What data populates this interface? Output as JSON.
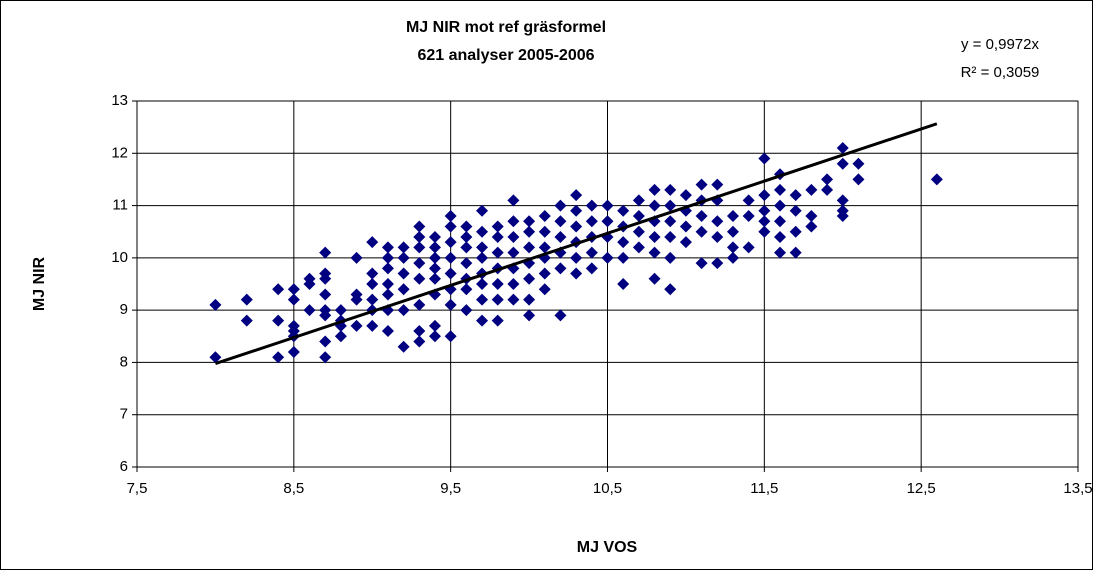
{
  "chart_data": {
    "type": "scatter",
    "title": "MJ NIR mot ref gräsformel",
    "subtitle": "621 analyser 2005-2006",
    "x_label": "MJ VOS",
    "y_label": "MJ NIR",
    "equation": "y = 0,9972x",
    "r_squared": "R² = 0,3059",
    "trendline": {
      "slope": 0.9972,
      "color": "#000000"
    },
    "color": "#000080",
    "grid": true,
    "xlim": [
      7.5,
      13.5
    ],
    "xticks": [
      {
        "value": 7.5,
        "label": "7,5"
      },
      {
        "value": 8.5,
        "label": "8,5"
      },
      {
        "value": 9.5,
        "label": "9,5"
      },
      {
        "value": 10.5,
        "label": "10,5"
      },
      {
        "value": 11.5,
        "label": "11,5"
      },
      {
        "value": 12.5,
        "label": "12,5"
      },
      {
        "value": 13.5,
        "label": "13,5"
      }
    ],
    "ylim": [
      6,
      13
    ],
    "yticks": [
      6,
      7,
      8,
      9,
      10,
      11,
      12,
      13
    ],
    "x": [
      8.0,
      8.0,
      8.2,
      8.2,
      8.4,
      8.4,
      8.4,
      8.5,
      8.5,
      8.5,
      8.5,
      8.5,
      8.5,
      8.6,
      8.6,
      8.6,
      8.7,
      8.7,
      8.7,
      8.7,
      8.7,
      8.7,
      8.7,
      8.7,
      8.8,
      8.8,
      8.8,
      8.8,
      8.9,
      8.9,
      8.9,
      8.9,
      9.0,
      9.0,
      9.0,
      9.0,
      9.0,
      9.0,
      9.1,
      9.1,
      9.1,
      9.1,
      9.1,
      9.1,
      9.1,
      9.2,
      9.2,
      9.2,
      9.2,
      9.2,
      9.2,
      9.3,
      9.3,
      9.3,
      9.3,
      9.3,
      9.3,
      9.3,
      9.3,
      9.4,
      9.4,
      9.4,
      9.4,
      9.4,
      9.4,
      9.4,
      9.4,
      9.5,
      9.5,
      9.5,
      9.5,
      9.5,
      9.5,
      9.5,
      9.5,
      9.6,
      9.6,
      9.6,
      9.6,
      9.6,
      9.6,
      9.6,
      9.7,
      9.7,
      9.7,
      9.7,
      9.7,
      9.7,
      9.7,
      9.7,
      9.8,
      9.8,
      9.8,
      9.8,
      9.8,
      9.8,
      9.8,
      9.9,
      9.9,
      9.9,
      9.9,
      9.9,
      9.9,
      9.9,
      10.0,
      10.0,
      10.0,
      10.0,
      10.0,
      10.0,
      10.0,
      10.1,
      10.1,
      10.1,
      10.1,
      10.1,
      10.1,
      10.2,
      10.2,
      10.2,
      10.2,
      10.2,
      10.2,
      10.3,
      10.3,
      10.3,
      10.3,
      10.3,
      10.3,
      10.4,
      10.4,
      10.4,
      10.4,
      10.4,
      10.5,
      10.5,
      10.5,
      10.5,
      10.6,
      10.6,
      10.6,
      10.6,
      10.6,
      10.7,
      10.7,
      10.7,
      10.7,
      10.8,
      10.8,
      10.8,
      10.8,
      10.8,
      10.8,
      10.9,
      10.9,
      10.9,
      10.9,
      10.9,
      10.9,
      11.0,
      11.0,
      11.0,
      11.0,
      11.1,
      11.1,
      11.1,
      11.1,
      11.1,
      11.2,
      11.2,
      11.2,
      11.2,
      11.2,
      11.3,
      11.3,
      11.3,
      11.3,
      11.4,
      11.4,
      11.4,
      11.5,
      11.5,
      11.5,
      11.5,
      11.5,
      11.6,
      11.6,
      11.6,
      11.6,
      11.6,
      11.6,
      11.7,
      11.7,
      11.7,
      11.7,
      11.8,
      11.8,
      11.8,
      11.9,
      11.9,
      12.0,
      12.0,
      12.0,
      12.0,
      12.0,
      12.1,
      12.1,
      12.6
    ],
    "values": [
      9.1,
      8.1,
      9.2,
      8.8,
      9.4,
      8.8,
      8.1,
      9.4,
      9.2,
      8.7,
      8.5,
      8.2,
      8.6,
      9.6,
      9.5,
      9.0,
      10.1,
      9.7,
      9.6,
      9.3,
      9.0,
      8.9,
      8.4,
      8.1,
      9.0,
      8.7,
      8.5,
      8.8,
      10.0,
      9.3,
      9.2,
      8.7,
      10.3,
      9.7,
      9.5,
      9.2,
      9.0,
      8.7,
      10.2,
      10.0,
      9.8,
      9.5,
      9.3,
      9.0,
      8.6,
      10.2,
      10.0,
      9.7,
      9.4,
      9.0,
      8.3,
      10.6,
      10.4,
      10.2,
      9.9,
      9.6,
      9.1,
      8.6,
      8.4,
      10.4,
      10.2,
      10.0,
      9.8,
      9.6,
      9.3,
      8.7,
      8.5,
      10.8,
      10.6,
      10.3,
      10.0,
      9.7,
      9.4,
      9.1,
      8.5,
      10.6,
      10.4,
      10.2,
      9.9,
      9.6,
      9.4,
      9.0,
      10.9,
      10.5,
      10.2,
      10.0,
      9.7,
      9.5,
      9.2,
      8.8,
      10.6,
      10.4,
      10.1,
      9.8,
      9.5,
      9.2,
      8.8,
      11.1,
      10.7,
      10.4,
      10.1,
      9.8,
      9.5,
      9.2,
      10.7,
      10.5,
      10.2,
      9.9,
      9.6,
      9.2,
      8.9,
      10.8,
      10.5,
      10.2,
      10.0,
      9.7,
      9.4,
      11.0,
      10.7,
      10.4,
      10.1,
      9.8,
      8.9,
      11.2,
      10.9,
      10.6,
      10.3,
      10.0,
      9.7,
      11.0,
      10.7,
      10.4,
      10.1,
      9.8,
      11.0,
      10.7,
      10.4,
      10.0,
      10.9,
      10.6,
      10.3,
      10.0,
      9.5,
      11.1,
      10.8,
      10.5,
      10.2,
      11.3,
      11.0,
      10.7,
      10.4,
      10.1,
      9.6,
      11.3,
      11.0,
      10.7,
      10.4,
      10.0,
      9.4,
      11.2,
      10.9,
      10.6,
      10.3,
      11.4,
      11.1,
      10.8,
      10.5,
      9.9,
      11.4,
      11.1,
      10.7,
      10.4,
      9.9,
      10.8,
      10.5,
      10.2,
      10.0,
      11.1,
      10.8,
      10.2,
      11.9,
      11.2,
      10.9,
      10.7,
      10.5,
      11.6,
      11.3,
      11.0,
      10.7,
      10.4,
      10.1,
      11.2,
      10.9,
      10.5,
      10.1,
      11.3,
      10.8,
      10.6,
      11.5,
      11.3,
      12.1,
      11.8,
      11.1,
      10.9,
      10.8,
      11.8,
      11.5,
      11.5
    ]
  }
}
